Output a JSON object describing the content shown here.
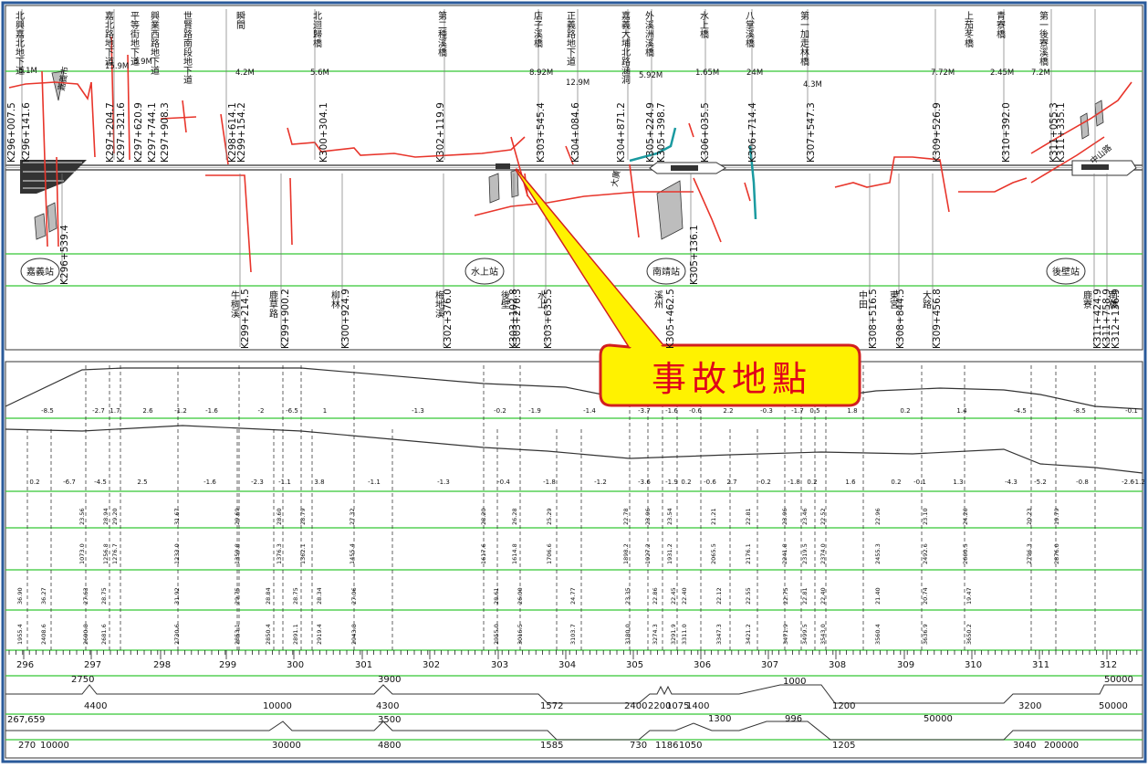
{
  "callout": {
    "text": "事故地點"
  },
  "stations": [
    "嘉義站",
    "水上站",
    "南靖站",
    "後壁站"
  ],
  "top_labels": [
    "北興嘉北地下道",
    "嘉北路地下道",
    "平等街地下道",
    "興業西路地下道",
    "世賢路南段地下道",
    "瞬間",
    "北迴歸橋",
    "第二種溪橋",
    "店子溪橋",
    "正義路地下道",
    "嘉義大埔北路涵洞",
    "外溪洲溪橋",
    "水上橋",
    "八掌溪橋",
    "第一加走林橋",
    "上茄苳橋",
    "青寮橋",
    "第一後寮溪橋"
  ],
  "top_km": [
    "K296+007.5",
    "K296+141.6",
    "K297+204.7",
    "K297+321.6",
    "K297+620.9",
    "K297+744.1",
    "K297+908.3",
    "K298+614.1",
    "K299+154.2",
    "K300+304.1",
    "K302+119.9",
    "K303+545.4",
    "K304+084.6",
    "K304+871.2",
    "K305+224.9",
    "K305+398.7",
    "K306+035.5",
    "K306+714.4",
    "K307+547.3",
    "K309+526.9",
    "K310+392.0",
    "K311+055.3",
    "K311+335.1"
  ],
  "top_notes": [
    "5.1M",
    "15.9M",
    "3.9M",
    "4.2M",
    "5.6M",
    "8.92M",
    "12.9M",
    "5.92M",
    "1.65M",
    "24M",
    "4.3M",
    "7.72M",
    "2.45M",
    "7.2M"
  ],
  "bottom_km": [
    "K296+539.4",
    "K299+214.5",
    "K299+900.2",
    "K300+924.9",
    "K302+376.0",
    "K303+102.8",
    "K303+270.3",
    "K303+635.5",
    "K305+136.1",
    "K305+462.5",
    "K308+516.5",
    "K308+844.5",
    "K309+456.8",
    "K311+424.9",
    "K311+758.9",
    "K312+136.9"
  ],
  "bottom_names": [
    "牛稠溪",
    "鹿草路",
    "柳林",
    "梅地溪",
    "後壁",
    "水上",
    "溪州",
    "中田",
    "東宮",
    "大路",
    "鹿寮",
    "南橋"
  ],
  "small_labels": [
    "中山路",
    "嘉義市",
    "大廣"
  ],
  "grad_top": [
    "-8.5",
    "-2.7",
    "1.7",
    "2.6",
    "-1.2",
    "-1.6",
    "-2",
    "-6.5",
    "1",
    "-1.3",
    "-0.2",
    "-1.9",
    "-1.4",
    "-3.7",
    "-1.6",
    "-0.6",
    "2.2",
    "-0.3",
    "-1.7",
    "0.5",
    "1.8",
    "0.2",
    "1.4",
    "-4.5",
    "-8.5",
    "-0.1"
  ],
  "grad_mid": [
    "0.2",
    "-6.7",
    "-4.5",
    "2.5",
    "-1.6",
    "-2.3",
    "-1.1",
    "3.8",
    "-1.1",
    "-1.3",
    "-0.4",
    "-1.8",
    "-1.2",
    "-3.6",
    "-1.9",
    "0.2",
    "-0.6",
    "2.7",
    "-0.2",
    "-1.8",
    "0.2",
    "1.6",
    "0.2",
    "-0.1",
    "1.3",
    "-4.3",
    "-5.2",
    "-0.8",
    "-2.6",
    "-1.2"
  ],
  "elev_row1": [
    "23.56",
    "28.94",
    "29.20",
    "31.67",
    "29.69",
    "28.60",
    "28.79",
    "27.32",
    "28.20",
    "26.28",
    "25.29",
    "22.78",
    "23.96",
    "23.54",
    "21.21",
    "22.81",
    "23.96",
    "23.46",
    "22.52",
    "22.96",
    "23.10",
    "24.26",
    "20.23",
    "19.79"
  ],
  "elev_row2": [
    "1073.0",
    "1256.8",
    "1276.7",
    "1233.0",
    "1359.8",
    "1376.3",
    "1362.1",
    "1455.4",
    "1617.6",
    "1614.8",
    "1706.6",
    "1898.2",
    "1927.2",
    "1931.2",
    "2065.5",
    "2176.1",
    "2241.8",
    "2319.5",
    "2374.0",
    "2455.3",
    "2492.6",
    "2660.5",
    "2796.3",
    "2876.0"
  ],
  "elev_row3": [
    "36.90",
    "36.27",
    "27.63",
    "28.75",
    "31.92",
    "29.75",
    "28.84",
    "28.75",
    "28.34",
    "27.06",
    "28.61",
    "26.00",
    "24.77",
    "23.35",
    "22.86",
    "22.45",
    "22.40",
    "22.12",
    "22.55",
    "22.75",
    "22.81",
    "22.40",
    "21.40",
    "20.74",
    "19.47"
  ],
  "elev_row4": [
    "1955.4",
    "2408.6",
    "2600.8",
    "2681.6",
    "2730.6",
    "2853.1",
    "2850.4",
    "2891.1",
    "2919.4",
    "2943.8",
    "2955.0",
    "3016.5",
    "3103.7",
    "3180.0",
    "3274.3",
    "3291.9",
    "3311.0",
    "3347.3",
    "3421.2",
    "3471.9",
    "3499.5",
    "3543.0",
    "3560.4",
    "3636.9",
    "3650.2"
  ],
  "km_axis": [
    "296",
    "297",
    "298",
    "299",
    "300",
    "301",
    "302",
    "303",
    "304",
    "305",
    "306",
    "307",
    "308",
    "309",
    "310",
    "311",
    "312"
  ],
  "curve1_labels": [
    "2750",
    "3900",
    "1000",
    "50000",
    "4400",
    "10000",
    "4300",
    "1572",
    "2400",
    "2200",
    "1075",
    "1400",
    "1200",
    "3200",
    "50000"
  ],
  "curve2_labels": [
    "267,659",
    "3500",
    "1300",
    "996",
    "50000",
    "270",
    "10000",
    "30000",
    "4800",
    "1585",
    "730",
    "1186",
    "1050",
    "1205",
    "3040",
    "200000"
  ]
}
